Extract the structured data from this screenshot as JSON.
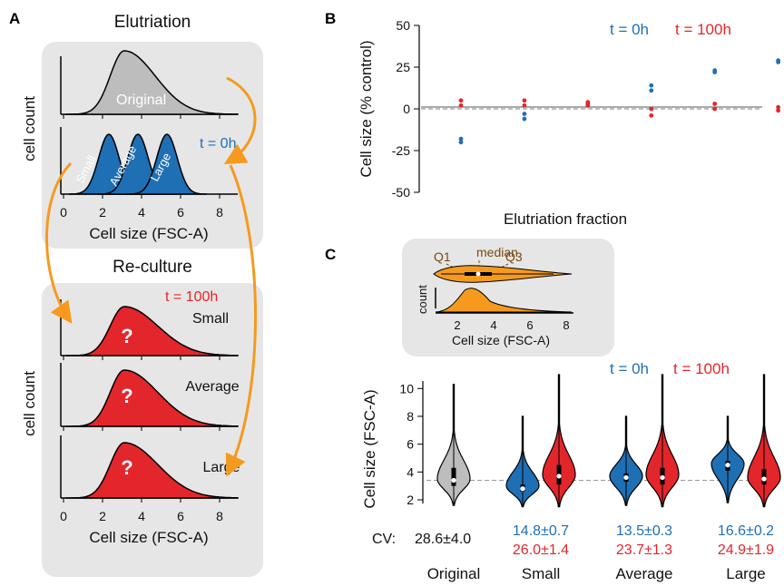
{
  "colors": {
    "blue": "#1f6fb5",
    "red": "#e3262b",
    "gray": "#bdbdbd",
    "orange": "#f59a1f",
    "panel_bg": "#e6e6e6",
    "ref_line": "#999999"
  },
  "panel_a": {
    "letter": "A",
    "top_title": "Elutriation",
    "bottom_title": "Re-culture",
    "ylabel": "cell count",
    "xlabel": "Cell size (FSC-A)",
    "x_ticks": [
      "0",
      "2",
      "4",
      "6",
      "8"
    ],
    "original_label": "Original",
    "t0_label": "t = 0h",
    "t100_label": "t = 100h",
    "fraction_labels": [
      "Small",
      "Average",
      "Large"
    ],
    "question": "?"
  },
  "panel_b": {
    "letter": "B",
    "legend_t0": "t = 0h",
    "legend_t100": "t = 100h"
  },
  "panel_c": {
    "letter": "C",
    "inset": {
      "q1": "Q1",
      "median": "median",
      "q3": "Q3",
      "ylabel": "count",
      "xlabel": "Cell size (FSC-A)",
      "x_ticks": [
        "2",
        "4",
        "6",
        "8"
      ]
    },
    "legend_t0": "t = 0h",
    "legend_t100": "t = 100h",
    "cv_label": "CV:",
    "cv_original": "28.6±4.0",
    "cv_blue": [
      "14.8±0.7",
      "13.5±0.3",
      "16.6±0.2"
    ],
    "cv_red": [
      "26.0±1.4",
      "23.7±1.3",
      "24.9±1.9"
    ]
  },
  "chart_data": [
    {
      "type": "scatter",
      "panel": "B",
      "xlabel": "Elutriation fraction",
      "ylabel": "Cell size (% control)",
      "ylim": [
        -50,
        50
      ],
      "yticks": [
        50,
        25,
        0,
        -25,
        -50
      ],
      "reference_line": 0,
      "series": [
        {
          "name": "t = 0h",
          "points": [
            [
              1,
              -18
            ],
            [
              1,
              -20
            ],
            [
              2,
              -3
            ],
            [
              2,
              -6
            ],
            [
              3,
              3
            ],
            [
              3,
              2
            ],
            [
              4,
              14
            ],
            [
              4,
              11
            ],
            [
              5,
              23
            ],
            [
              5,
              22
            ],
            [
              6,
              29
            ],
            [
              6,
              28
            ]
          ]
        },
        {
          "name": "t = 100h",
          "points": [
            [
              1,
              5
            ],
            [
              1,
              2
            ],
            [
              2,
              5
            ],
            [
              2,
              2
            ],
            [
              3,
              4
            ],
            [
              3,
              2
            ],
            [
              4,
              0
            ],
            [
              4,
              -4
            ],
            [
              5,
              3
            ],
            [
              5,
              0
            ],
            [
              6,
              1
            ],
            [
              6,
              -1
            ]
          ]
        }
      ]
    },
    {
      "type": "violin",
      "panel": "C",
      "ylabel": "Cell size (FSC-A)",
      "ylim": [
        2,
        10.5
      ],
      "yticks": [
        10,
        8,
        6,
        4,
        2
      ],
      "reference_line": 3.4,
      "categories": [
        "Original",
        "Small",
        "Average",
        "Large"
      ],
      "violins": [
        {
          "category": "Original",
          "color": "gray",
          "min": 1.6,
          "q1": 3.0,
          "median": 3.4,
          "q3": 4.3,
          "max": 10.3,
          "mode": 3.5
        },
        {
          "category": "Small",
          "color": "blue",
          "min": 1.5,
          "q1": 2.6,
          "median": 2.8,
          "q3": 3.1,
          "max": 8.0,
          "mode": 3.0
        },
        {
          "category": "Small",
          "color": "red",
          "min": 1.5,
          "q1": 3.1,
          "median": 3.7,
          "q3": 4.5,
          "max": 11.0,
          "mode": 3.8
        },
        {
          "category": "Average",
          "color": "blue",
          "min": 1.6,
          "q1": 3.3,
          "median": 3.6,
          "q3": 3.9,
          "max": 8.0,
          "mode": 3.7
        },
        {
          "category": "Average",
          "color": "red",
          "min": 1.5,
          "q1": 3.1,
          "median": 3.6,
          "q3": 4.3,
          "max": 11.0,
          "mode": 3.8
        },
        {
          "category": "Large",
          "color": "blue",
          "min": 1.8,
          "q1": 4.1,
          "median": 4.5,
          "q3": 4.8,
          "max": 8.0,
          "mode": 4.6
        },
        {
          "category": "Large",
          "color": "red",
          "min": 1.5,
          "q1": 3.1,
          "median": 3.5,
          "q3": 4.2,
          "max": 11.0,
          "mode": 3.6
        }
      ]
    }
  ]
}
